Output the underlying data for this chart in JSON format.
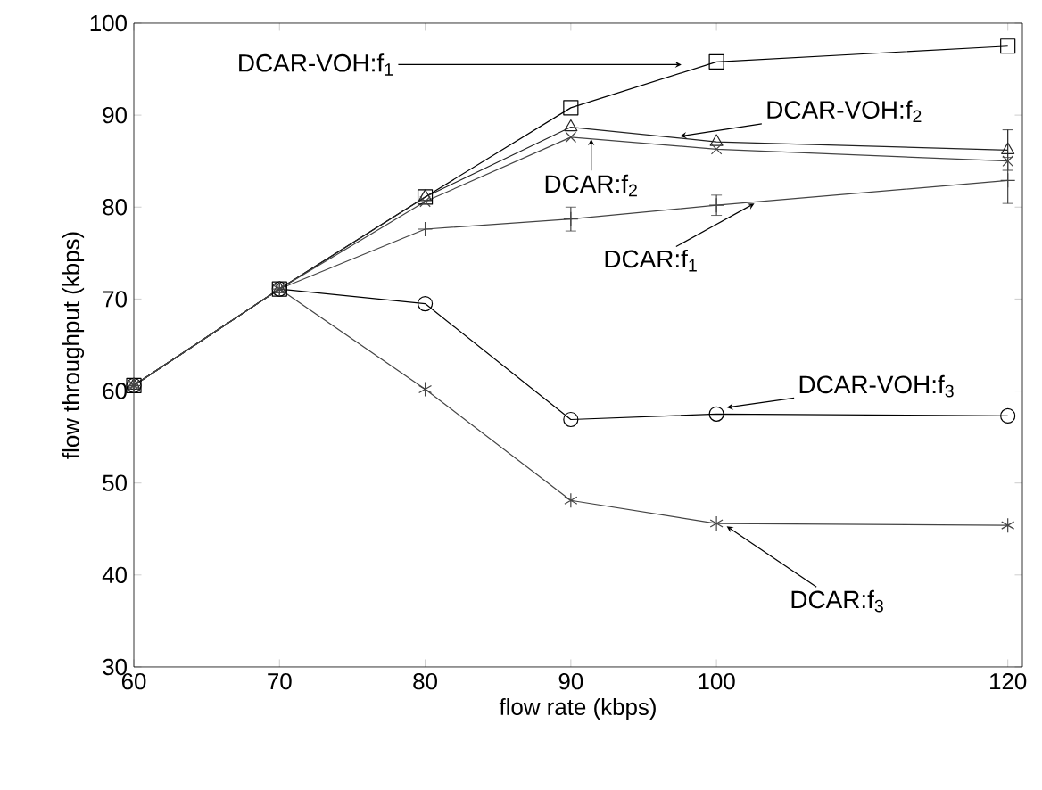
{
  "chart_data": {
    "type": "line",
    "xlabel": "flow rate (kbps)",
    "ylabel": "flow throughput (kbps)",
    "x": [
      60,
      70,
      80,
      90,
      100,
      120
    ],
    "xlim": [
      60,
      121
    ],
    "ylim": [
      30,
      100
    ],
    "xticks": [
      60,
      70,
      80,
      90,
      100,
      120
    ],
    "yticks": [
      30,
      40,
      50,
      60,
      70,
      80,
      90,
      100
    ],
    "grid": false,
    "line_style": "solid",
    "series": [
      {
        "color": "#000000",
        "marker": "square",
        "values": [
          60.6,
          71.1,
          81.1,
          90.8,
          95.8,
          97.5
        ]
      },
      {
        "color": "#222222",
        "marker": "triangle",
        "values": [
          60.6,
          71.1,
          81.1,
          88.7,
          87.1,
          86.2
        ],
        "errors": [
          null,
          null,
          null,
          null,
          null,
          2.2
        ]
      },
      {
        "color": "#000000",
        "marker": "circle",
        "values": [
          60.6,
          71.1,
          69.5,
          56.9,
          57.5,
          57.3
        ]
      },
      {
        "color": "#444444",
        "marker": "cross",
        "values": [
          60.6,
          71.1,
          77.6,
          78.7,
          80.2,
          82.9
        ],
        "errors": [
          null,
          null,
          null,
          1.3,
          1.1,
          2.5
        ]
      },
      {
        "color": "#444444",
        "marker": "cross",
        "values": [
          60.6,
          71.1,
          80.6,
          87.6,
          86.3,
          85.0
        ]
      },
      {
        "color": "#444444",
        "marker": "cross",
        "values": [
          60.6,
          71.1,
          60.2,
          48.1,
          45.6,
          45.4
        ]
      }
    ],
    "annotations": [
      {
        "text": "DCAR-VOH:f$_{1}$",
        "x": 97.6,
        "y": 95.5
      },
      {
        "text": "DCAR-VOH:f$_{2}$",
        "x": 97.5,
        "y": 87.7
      },
      {
        "text": "DCAR:f$_{2}$",
        "x": 91.4,
        "y": 87.4
      },
      {
        "text": "DCAR:f$_{1}$",
        "x": 102.6,
        "y": 80.4
      },
      {
        "text": "DCAR-VOH:f$_{3}$",
        "x": 100.7,
        "y": 58.2
      },
      {
        "text": "DCAR:f$_{3}$",
        "x": 100.7,
        "y": 45.3
      }
    ]
  }
}
